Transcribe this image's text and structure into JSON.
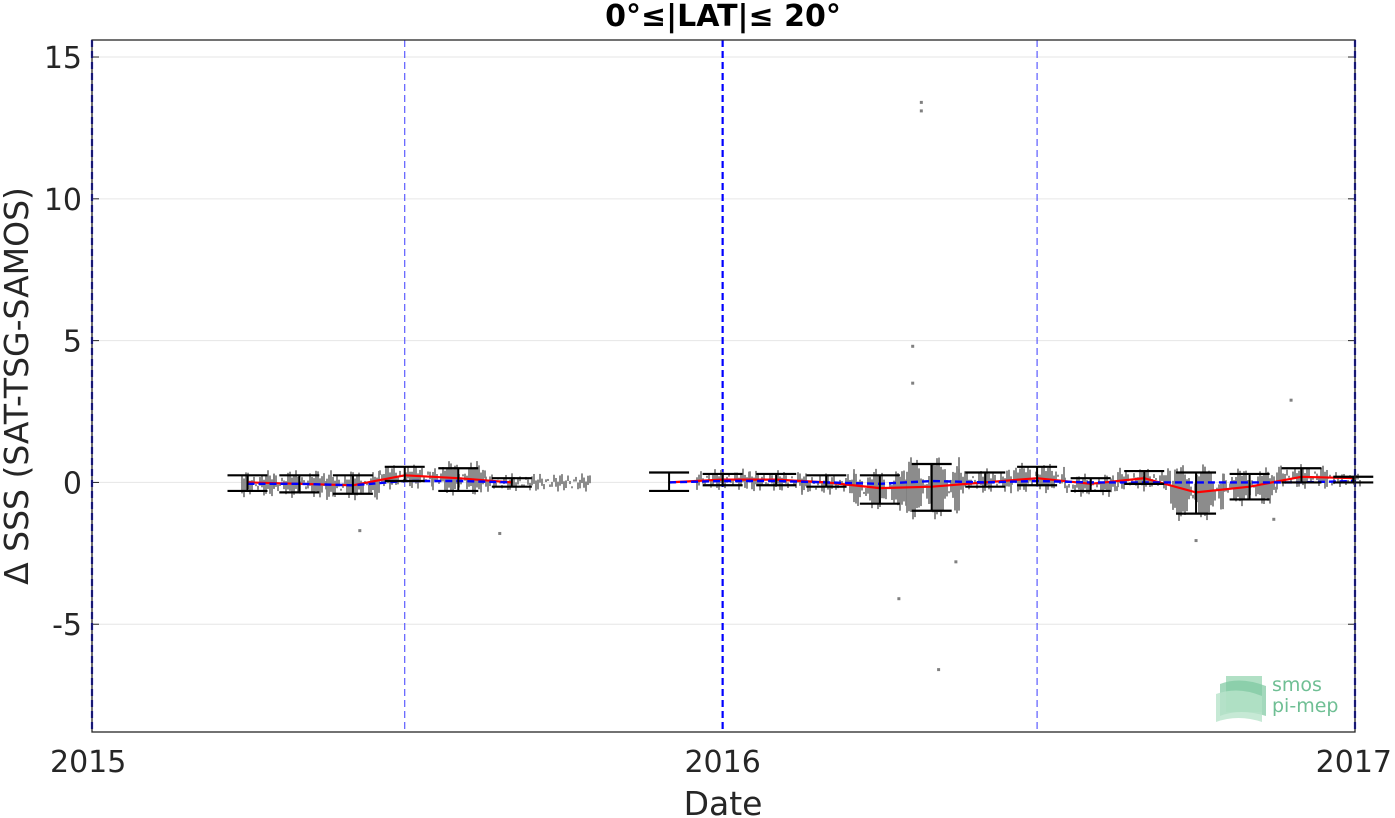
{
  "chart_data": {
    "type": "scatter",
    "title": "0°≤|LAT|≤ 20°",
    "xlabel": "Date",
    "ylabel": "Δ SSS (SAT-TSG-SAMOS)",
    "xlim": [
      "2015-01-01",
      "2017-01-01"
    ],
    "ylim": [
      -8.8,
      15.6
    ],
    "x_ticks": [
      {
        "date": "2015-01-01",
        "label": "2015"
      },
      {
        "date": "2016-01-01",
        "label": "2016"
      },
      {
        "date": "2017-01-01",
        "label": "2017"
      }
    ],
    "y_ticks": [
      {
        "value": 15,
        "label": "15"
      },
      {
        "value": 10,
        "label": "10"
      },
      {
        "value": 5,
        "label": "5"
      },
      {
        "value": 0,
        "label": "0"
      },
      {
        "value": -5,
        "label": "-5"
      }
    ],
    "grid": "horizontal",
    "year_lines": [
      "2015-01-01",
      "2016-01-01",
      "2017-01-01"
    ],
    "half_year_lines": [
      "2015-07-01",
      "2016-07-01"
    ],
    "zero_line": 0,
    "series": [
      {
        "style": "errorbar",
        "color": "#000000",
        "points": [
          {
            "date": "2015-04-01",
            "mean": -0.05,
            "lo": -0.3,
            "hi": 0.25
          },
          {
            "date": "2015-05-01",
            "mean": -0.05,
            "lo": -0.35,
            "hi": 0.25
          },
          {
            "date": "2015-06-01",
            "mean": -0.1,
            "lo": -0.4,
            "hi": 0.25
          },
          {
            "date": "2015-07-01",
            "mean": 0.2,
            "lo": 0.05,
            "hi": 0.55
          },
          {
            "date": "2015-08-01",
            "mean": 0.15,
            "lo": -0.3,
            "hi": 0.5
          },
          {
            "date": "2015-09-01",
            "mean": 0.0,
            "lo": -0.15,
            "hi": 0.15
          },
          {
            "date": "2015-12-01",
            "mean": 0.0,
            "lo": -0.3,
            "hi": 0.35
          },
          {
            "date": "2016-01-01",
            "mean": 0.1,
            "lo": -0.1,
            "hi": 0.3
          },
          {
            "date": "2016-02-01",
            "mean": 0.05,
            "lo": -0.1,
            "hi": 0.3
          },
          {
            "date": "2016-03-01",
            "mean": -0.05,
            "lo": -0.15,
            "hi": 0.25
          },
          {
            "date": "2016-04-01",
            "mean": -0.25,
            "lo": -0.75,
            "hi": 0.25
          },
          {
            "date": "2016-05-01",
            "mean": -0.2,
            "lo": -1.0,
            "hi": 0.65
          },
          {
            "date": "2016-06-01",
            "mean": 0.05,
            "lo": -0.15,
            "hi": 0.35
          },
          {
            "date": "2016-07-01",
            "mean": 0.15,
            "lo": -0.1,
            "hi": 0.55
          },
          {
            "date": "2016-08-01",
            "mean": -0.1,
            "lo": -0.3,
            "hi": 0.15
          },
          {
            "date": "2016-09-01",
            "mean": 0.1,
            "lo": -0.05,
            "hi": 0.4
          },
          {
            "date": "2016-10-01",
            "mean": -0.35,
            "lo": -1.1,
            "hi": 0.35
          },
          {
            "date": "2016-11-01",
            "mean": -0.15,
            "lo": -0.6,
            "hi": 0.3
          },
          {
            "date": "2016-12-01",
            "mean": 0.2,
            "lo": 0.0,
            "hi": 0.5
          },
          {
            "date": "2016-12-31",
            "mean": 0.1,
            "lo": 0.0,
            "hi": 0.2
          }
        ]
      },
      {
        "style": "line",
        "color": "#ff0000",
        "x": [
          "2015-04-01",
          "2015-05-01",
          "2015-06-01",
          "2015-07-01",
          "2015-08-01",
          "2015-09-01"
        ],
        "y": [
          0.0,
          -0.05,
          -0.1,
          0.25,
          0.15,
          0.0
        ]
      },
      {
        "style": "line",
        "color": "#ff0000",
        "x": [
          "2015-12-01",
          "2016-01-01",
          "2016-02-01",
          "2016-03-01",
          "2016-04-01",
          "2016-05-01",
          "2016-06-01",
          "2016-07-01",
          "2016-08-01",
          "2016-09-01",
          "2016-10-01",
          "2016-11-01",
          "2016-12-01",
          "2017-01-01"
        ],
        "y": [
          0.0,
          0.1,
          0.1,
          0.0,
          -0.2,
          -0.15,
          0.0,
          0.15,
          -0.05,
          0.15,
          -0.35,
          -0.15,
          0.2,
          0.15
        ]
      },
      {
        "style": "line",
        "dash": true,
        "color": "#0000ff",
        "x": [
          "2015-04-01",
          "2015-05-01",
          "2015-06-01",
          "2015-07-01",
          "2015-08-01",
          "2015-09-01"
        ],
        "y": [
          -0.05,
          -0.05,
          -0.1,
          0.05,
          0.05,
          0.0
        ]
      },
      {
        "style": "line",
        "dash": true,
        "color": "#0000ff",
        "x": [
          "2015-12-01",
          "2016-01-01",
          "2016-02-01",
          "2016-03-01",
          "2016-04-01",
          "2016-05-01",
          "2016-06-01",
          "2016-07-01",
          "2016-08-01",
          "2016-09-01",
          "2016-10-01",
          "2016-11-01",
          "2016-12-01",
          "2017-01-01"
        ],
        "y": [
          0.0,
          0.05,
          0.05,
          0.0,
          -0.05,
          0.05,
          0.0,
          0.05,
          0.0,
          0.0,
          0.0,
          0.0,
          0.0,
          0.05
        ]
      },
      {
        "style": "scatter",
        "color": "#808080",
        "points": [
          {
            "date": "2016-04-25",
            "value": 13.4
          },
          {
            "date": "2016-04-25",
            "value": 13.1
          },
          {
            "date": "2016-04-20",
            "value": 4.8
          },
          {
            "date": "2016-04-20",
            "value": 3.5
          },
          {
            "date": "2016-11-25",
            "value": 2.9
          },
          {
            "date": "2016-04-12",
            "value": -4.1
          },
          {
            "date": "2016-05-05",
            "value": -6.6
          },
          {
            "date": "2015-06-05",
            "value": -1.7
          },
          {
            "date": "2015-08-25",
            "value": -1.8
          },
          {
            "date": "2016-05-15",
            "value": -2.8
          },
          {
            "date": "2016-10-01",
            "value": -2.05
          },
          {
            "date": "2016-11-15",
            "value": -1.3
          }
        ]
      }
    ]
  },
  "logo": {
    "line1": "smos",
    "line2": "pi-mep"
  },
  "colors": {
    "grid": "#e6e6e6",
    "axis": "#262626",
    "year_line": "#0000ff",
    "half_year_line": "#4d4dff",
    "scatter": "#808080"
  }
}
